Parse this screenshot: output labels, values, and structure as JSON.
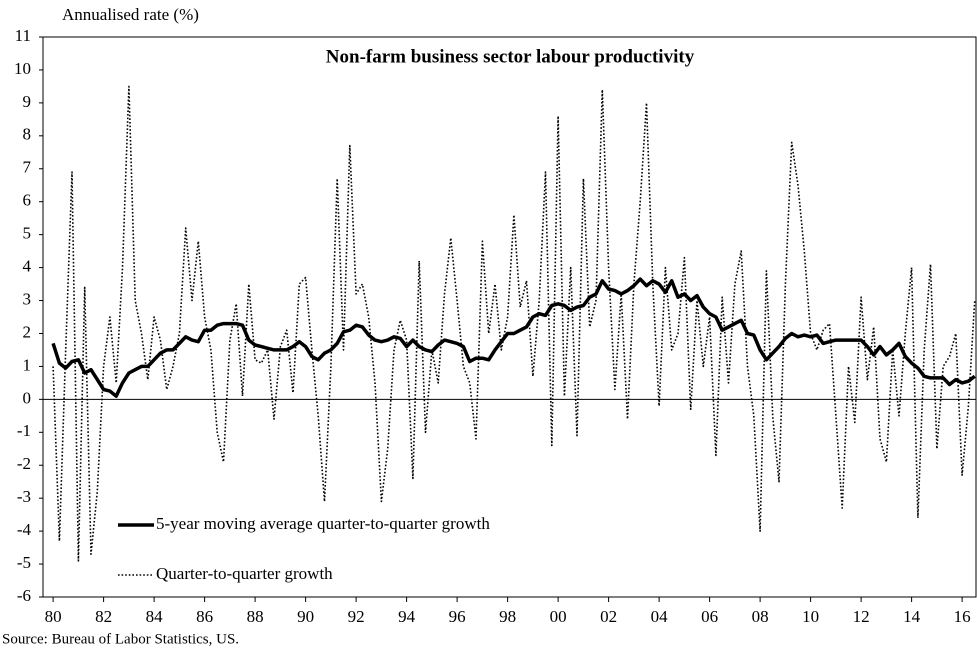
{
  "chart_data": {
    "type": "line",
    "title": "Non-farm business sector labour productivity",
    "y_label": "Annualised rate (%)",
    "source": "Source: Bureau of Labor Statistics, US.",
    "x": [
      1980,
      1980.25,
      1980.5,
      1980.75,
      1981,
      1981.25,
      1981.5,
      1981.75,
      1982,
      1982.25,
      1982.5,
      1982.75,
      1983,
      1983.25,
      1983.5,
      1983.75,
      1984,
      1984.25,
      1984.5,
      1984.75,
      1985,
      1985.25,
      1985.5,
      1985.75,
      1986,
      1986.25,
      1986.5,
      1986.75,
      1987,
      1987.25,
      1987.5,
      1987.75,
      1988,
      1988.25,
      1988.5,
      1988.75,
      1989,
      1989.25,
      1989.5,
      1989.75,
      1990,
      1990.25,
      1990.5,
      1990.75,
      1991,
      1991.25,
      1991.5,
      1991.75,
      1992,
      1992.25,
      1992.5,
      1992.75,
      1993,
      1993.25,
      1993.5,
      1993.75,
      1994,
      1994.25,
      1994.5,
      1994.75,
      1995,
      1995.25,
      1995.5,
      1995.75,
      1996,
      1996.25,
      1996.5,
      1996.75,
      1997,
      1997.25,
      1997.5,
      1997.75,
      1998,
      1998.25,
      1998.5,
      1998.75,
      1999,
      1999.25,
      1999.5,
      1999.75,
      2000,
      2000.25,
      2000.5,
      2000.75,
      2001,
      2001.25,
      2001.5,
      2001.75,
      2002,
      2002.25,
      2002.5,
      2002.75,
      2003,
      2003.25,
      2003.5,
      2003.75,
      2004,
      2004.25,
      2004.5,
      2004.75,
      2005,
      2005.25,
      2005.5,
      2005.75,
      2006,
      2006.25,
      2006.5,
      2006.75,
      2007,
      2007.25,
      2007.5,
      2007.75,
      2008,
      2008.25,
      2008.5,
      2008.75,
      2009,
      2009.25,
      2009.5,
      2009.75,
      2010,
      2010.25,
      2010.5,
      2010.75,
      2011,
      2011.25,
      2011.5,
      2011.75,
      2012,
      2012.25,
      2012.5,
      2012.75,
      2013,
      2013.25,
      2013.5,
      2013.75,
      2014,
      2014.25,
      2014.5,
      2014.75,
      2015,
      2015.25,
      2015.5,
      2015.75,
      2016,
      2016.25,
      2016.5
    ],
    "series": [
      {
        "name": "5-year moving average quarter-to-quarter growth",
        "color": "#000000",
        "style": "solid",
        "values": [
          1.7,
          1.1,
          0.95,
          1.15,
          1.2,
          0.8,
          0.9,
          0.6,
          0.3,
          0.25,
          0.1,
          0.5,
          0.8,
          0.9,
          1.0,
          1.0,
          1.2,
          1.4,
          1.5,
          1.5,
          1.7,
          1.9,
          1.8,
          1.75,
          2.1,
          2.1,
          2.25,
          2.3,
          2.3,
          2.3,
          2.25,
          1.8,
          1.65,
          1.6,
          1.55,
          1.5,
          1.5,
          1.5,
          1.6,
          1.75,
          1.6,
          1.3,
          1.2,
          1.4,
          1.5,
          1.7,
          2.05,
          2.1,
          2.25,
          2.2,
          1.95,
          1.8,
          1.75,
          1.8,
          1.9,
          1.85,
          1.6,
          1.8,
          1.6,
          1.5,
          1.45,
          1.65,
          1.8,
          1.75,
          1.7,
          1.6,
          1.15,
          1.25,
          1.25,
          1.2,
          1.5,
          1.75,
          2.0,
          2.0,
          2.1,
          2.2,
          2.5,
          2.6,
          2.55,
          2.85,
          2.9,
          2.85,
          2.7,
          2.8,
          2.85,
          3.1,
          3.2,
          3.6,
          3.35,
          3.3,
          3.2,
          3.3,
          3.45,
          3.65,
          3.45,
          3.6,
          3.5,
          3.25,
          3.6,
          3.1,
          3.2,
          3.0,
          3.15,
          2.8,
          2.6,
          2.5,
          2.1,
          2.2,
          2.3,
          2.4,
          2.0,
          1.95,
          1.5,
          1.2,
          1.4,
          1.6,
          1.85,
          2.0,
          1.9,
          1.95,
          1.9,
          1.95,
          1.7,
          1.75,
          1.8,
          1.8,
          1.8,
          1.8,
          1.8,
          1.6,
          1.35,
          1.6,
          1.35,
          1.5,
          1.7,
          1.3,
          1.1,
          0.95,
          0.7,
          0.65,
          0.65,
          0.65,
          0.45,
          0.6,
          0.5,
          0.55,
          0.7
        ]
      },
      {
        "name": "Quarter-to-quarter growth",
        "color": "#000000",
        "style": "dotted",
        "values": [
          1.0,
          -4.3,
          1.5,
          6.9,
          -4.9,
          3.4,
          -4.7,
          -2.8,
          1.0,
          2.5,
          0.5,
          4.0,
          9.5,
          3.0,
          2.0,
          0.6,
          2.5,
          1.8,
          0.3,
          1.0,
          2.0,
          5.2,
          3.0,
          4.8,
          2.5,
          1.5,
          -1.0,
          -1.9,
          1.8,
          2.9,
          0.1,
          3.5,
          1.2,
          1.1,
          1.5,
          -0.6,
          1.6,
          2.1,
          0.2,
          3.5,
          3.7,
          1.5,
          -0.5,
          -3.1,
          1.0,
          6.7,
          1.5,
          7.7,
          3.2,
          3.5,
          2.5,
          0.5,
          -3.1,
          -1.5,
          1.5,
          2.4,
          1.8,
          -2.4,
          4.2,
          -1.0,
          1.5,
          0.5,
          3.2,
          4.9,
          3.0,
          1.0,
          0.5,
          -1.2,
          4.8,
          2.0,
          3.5,
          1.5,
          2.5,
          5.6,
          2.8,
          3.6,
          0.7,
          3.0,
          6.9,
          -1.4,
          8.6,
          0.1,
          4.0,
          -1.1,
          6.7,
          2.2,
          3.0,
          9.4,
          4.0,
          0.3,
          3.2,
          -0.6,
          3.5,
          6.0,
          9.0,
          3.5,
          -0.2,
          4.0,
          1.5,
          2.0,
          4.3,
          -0.3,
          3.0,
          1.0,
          2.5,
          -1.7,
          3.1,
          0.5,
          3.5,
          4.5,
          1.0,
          -0.5,
          -4.0,
          3.9,
          -0.5,
          -2.5,
          3.5,
          7.8,
          6.5,
          4.5,
          2.0,
          1.5,
          2.1,
          2.3,
          -0.5,
          -3.3,
          1.0,
          -0.7,
          3.1,
          0.6,
          2.2,
          -1.2,
          -1.9,
          1.5,
          -0.5,
          2.0,
          4.0,
          -3.6,
          1.5,
          4.1,
          -1.5,
          1.0,
          1.3,
          2.0,
          -2.3,
          -0.2,
          3.0
        ]
      }
    ],
    "xlim": [
      1979.6,
      2016.55
    ],
    "xticks": [
      {
        "value": 1980,
        "label": "80"
      },
      {
        "value": 1982,
        "label": "82"
      },
      {
        "value": 1984,
        "label": "84"
      },
      {
        "value": 1986,
        "label": "86"
      },
      {
        "value": 1988,
        "label": "88"
      },
      {
        "value": 1990,
        "label": "90"
      },
      {
        "value": 1992,
        "label": "92"
      },
      {
        "value": 1994,
        "label": "94"
      },
      {
        "value": 1996,
        "label": "96"
      },
      {
        "value": 1998,
        "label": "98"
      },
      {
        "value": 2000,
        "label": "00"
      },
      {
        "value": 2002,
        "label": "02"
      },
      {
        "value": 2004,
        "label": "04"
      },
      {
        "value": 2006,
        "label": "06"
      },
      {
        "value": 2008,
        "label": "08"
      },
      {
        "value": 2010,
        "label": "10"
      },
      {
        "value": 2012,
        "label": "12"
      },
      {
        "value": 2014,
        "label": "14"
      },
      {
        "value": 2016,
        "label": "16"
      }
    ],
    "ylim": [
      -6,
      11
    ],
    "yticks": [
      -6,
      -5,
      -4,
      -3,
      -2,
      -1,
      0,
      1,
      2,
      3,
      4,
      5,
      6,
      7,
      8,
      9,
      10,
      11
    ],
    "grid": false,
    "zero_line": true,
    "legend": "lower left"
  }
}
